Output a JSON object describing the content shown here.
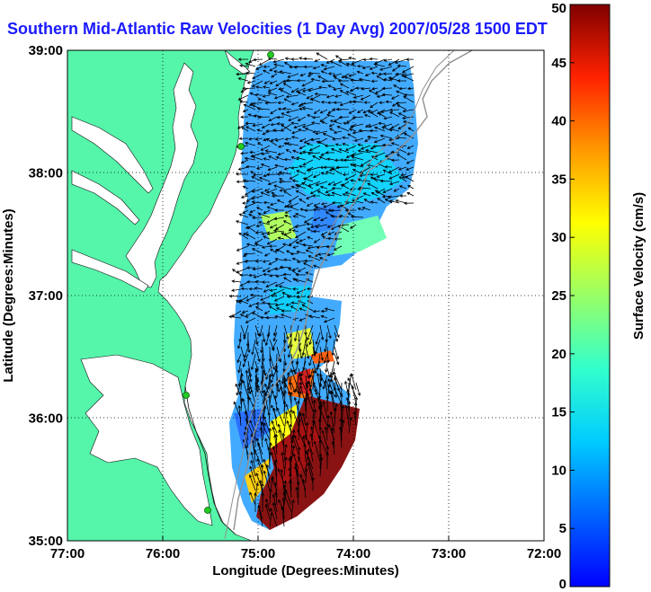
{
  "title": "Southern Mid-Atlantic Raw Velocities (1 Day Avg) 2007/05/28 1500 EDT",
  "xlabel": "Longitude (Degrees:Minutes)",
  "ylabel": "Latitude (Degrees:Minutes)",
  "x_ticks": [
    "77:00",
    "76:00",
    "75:00",
    "74:00",
    "73:00",
    "72:00"
  ],
  "y_ticks": [
    "39:00",
    "38:00",
    "37:00",
    "36:00",
    "35:00"
  ],
  "colorbar": {
    "label": "Surface Velocity (cm/s)",
    "ticks": [
      "0",
      "5",
      "10",
      "15",
      "20",
      "25",
      "30",
      "35",
      "40",
      "45",
      "50"
    ],
    "range": [
      0,
      50
    ],
    "colormap": "jet"
  },
  "colors": {
    "land": "#55f5aa",
    "title": "#1a1aff",
    "grid": "#000000",
    "isobath": "#909090",
    "station": "#22cc22"
  },
  "map": {
    "lon_range": [
      -77,
      -72
    ],
    "lat_range": [
      35,
      39
    ],
    "grid": "dotted"
  }
}
